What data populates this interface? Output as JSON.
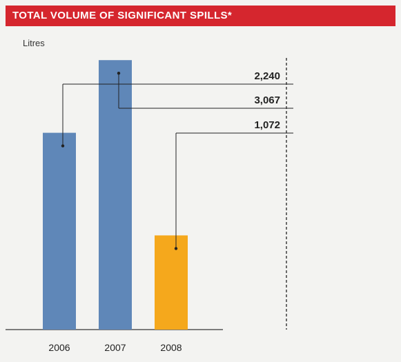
{
  "header": {
    "title": "TOTAL VOLUME OF SIGNIFICANT SPILLS*",
    "unit_label": "Litres"
  },
  "colors": {
    "title_bg": "#d5262e",
    "bar_default": "#5f87b8",
    "bar_highlight": "#f5a81c",
    "callout_line": "#222222"
  },
  "chart_data": {
    "type": "bar",
    "title": "TOTAL VOLUME OF SIGNIFICANT SPILLS*",
    "ylabel": "Litres",
    "xlabel": "",
    "categories": [
      "2006",
      "2007",
      "2008"
    ],
    "values": [
      2240,
      3067,
      1072
    ],
    "value_labels": [
      "2,240",
      "3,067",
      "1,072"
    ],
    "highlight_index": 2,
    "ylim": [
      0,
      3100
    ],
    "grid": false,
    "axis_labels_shown": false
  }
}
